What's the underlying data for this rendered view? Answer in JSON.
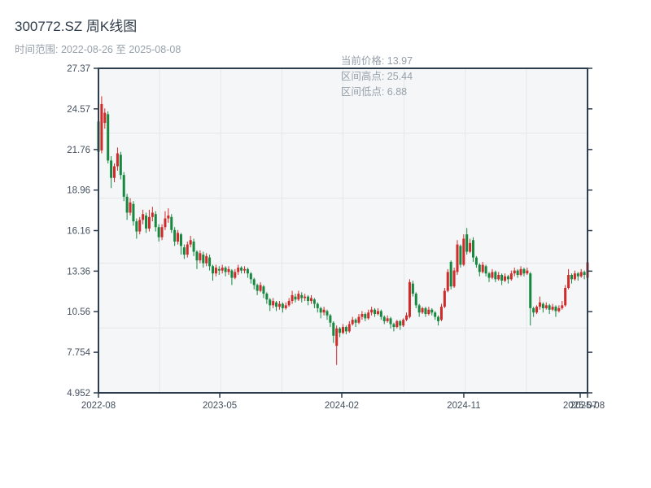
{
  "header": {
    "title": "300772.SZ 周K线图",
    "range_text": "时间范围: 2022-08-26 至 2025-08-08",
    "stats": {
      "current": "当前价格: 13.97",
      "range_high": "区间高点: 25.44",
      "range_low": "区间低点: 6.88"
    }
  },
  "chart_data": {
    "type": "candlestick",
    "title": "300772.SZ 周K线图",
    "interval": "weekly",
    "date_range": {
      "start": "2022-08-26",
      "end": "2025-08-08"
    },
    "current_price": 13.97,
    "range_high": 25.44,
    "range_low": 6.88,
    "ylim": [
      4.952,
      27.37
    ],
    "y_tick_labels": [
      "4.952",
      "7.754",
      "10.56",
      "13.36",
      "16.16",
      "18.96",
      "21.76",
      "24.57",
      "27.37"
    ],
    "y_ticks": [
      4.952,
      7.754,
      10.56,
      13.36,
      16.16,
      18.96,
      21.76,
      24.57,
      27.37
    ],
    "x_ticks": [
      {
        "label": "2022-08",
        "pos": 0.0
      },
      {
        "label": "2023-05",
        "pos": 0.248
      },
      {
        "label": "2024-02",
        "pos": 0.4975
      },
      {
        "label": "2024-11",
        "pos": 0.747
      },
      {
        "label": "2025-07",
        "pos": 0.985
      },
      {
        "label": "2025-08",
        "pos": 1.0
      }
    ],
    "grid": {
      "v_divisions": 8,
      "h_divisions": 5
    },
    "colors": {
      "up": "#d12a2a",
      "down": "#168840",
      "plot_bg": "#f4f6f7",
      "grid": "#e4e7ea",
      "axis": "#2e3d4e"
    },
    "candles": [
      [
        23.7,
        24.0,
        21.2,
        21.6
      ],
      [
        21.7,
        25.44,
        21.5,
        24.9
      ],
      [
        23.6,
        24.6,
        23.2,
        24.3
      ],
      [
        24.2,
        24.4,
        20.8,
        21.0
      ],
      [
        21.0,
        21.3,
        19.1,
        19.8
      ],
      [
        19.8,
        20.8,
        19.5,
        20.6
      ],
      [
        20.6,
        21.9,
        20.3,
        21.5
      ],
      [
        21.4,
        21.6,
        19.7,
        20.0
      ],
      [
        20.0,
        20.2,
        18.2,
        18.5
      ],
      [
        18.5,
        18.7,
        16.9,
        17.4
      ],
      [
        17.4,
        18.4,
        17.2,
        18.1
      ],
      [
        18.0,
        18.2,
        16.5,
        16.8
      ],
      [
        16.8,
        17.0,
        15.6,
        16.1
      ],
      [
        16.1,
        17.1,
        15.9,
        16.9
      ],
      [
        16.9,
        17.6,
        16.6,
        17.3
      ],
      [
        17.2,
        17.4,
        16.0,
        16.3
      ],
      [
        16.3,
        17.6,
        16.1,
        17.1
      ],
      [
        17.1,
        17.8,
        16.8,
        17.4
      ],
      [
        17.3,
        17.5,
        16.1,
        16.4
      ],
      [
        16.4,
        16.6,
        15.4,
        15.7
      ],
      [
        15.7,
        16.6,
        15.5,
        16.4
      ],
      [
        16.4,
        17.5,
        16.2,
        17.0
      ],
      [
        17.0,
        17.7,
        16.7,
        17.2
      ],
      [
        17.1,
        17.3,
        16.0,
        16.2
      ],
      [
        16.2,
        16.4,
        15.1,
        15.4
      ],
      [
        15.4,
        16.2,
        15.2,
        16.0
      ],
      [
        15.9,
        16.0,
        14.5,
        15.1
      ],
      [
        15.0,
        15.2,
        14.2,
        14.5
      ],
      [
        14.5,
        15.4,
        14.3,
        15.2
      ],
      [
        15.2,
        15.8,
        15.0,
        15.5
      ],
      [
        15.4,
        15.6,
        14.4,
        14.7
      ],
      [
        14.7,
        14.8,
        13.5,
        14.1
      ],
      [
        14.1,
        14.8,
        13.9,
        14.6
      ],
      [
        14.5,
        14.7,
        13.6,
        13.9
      ],
      [
        13.9,
        14.6,
        13.7,
        14.4
      ],
      [
        14.3,
        14.5,
        13.4,
        13.7
      ],
      [
        13.7,
        13.8,
        12.7,
        13.2
      ],
      [
        13.2,
        13.8,
        13.0,
        13.6
      ],
      [
        13.5,
        13.7,
        13.1,
        13.4
      ],
      [
        13.4,
        13.8,
        13.2,
        13.6
      ],
      [
        13.6,
        13.7,
        13.0,
        13.3
      ],
      [
        13.3,
        13.7,
        13.1,
        13.5
      ],
      [
        13.4,
        13.5,
        12.4,
        12.9
      ],
      [
        12.9,
        13.5,
        12.8,
        13.3
      ],
      [
        13.3,
        13.8,
        13.1,
        13.6
      ],
      [
        13.6,
        13.7,
        13.2,
        13.4
      ],
      [
        13.4,
        13.7,
        13.2,
        13.5
      ],
      [
        13.5,
        13.6,
        12.9,
        13.2
      ],
      [
        13.2,
        13.3,
        12.5,
        12.8
      ],
      [
        12.8,
        12.9,
        12.1,
        12.4
      ],
      [
        12.4,
        12.5,
        11.7,
        12.0
      ],
      [
        12.0,
        12.6,
        11.9,
        12.4
      ],
      [
        12.3,
        12.4,
        11.5,
        11.8
      ],
      [
        11.8,
        11.9,
        11.1,
        11.4
      ],
      [
        11.4,
        11.5,
        10.6,
        11.0
      ],
      [
        11.0,
        11.5,
        10.8,
        11.3
      ],
      [
        11.2,
        11.3,
        10.6,
        10.9
      ],
      [
        10.9,
        11.3,
        10.7,
        11.1
      ],
      [
        11.1,
        11.2,
        10.5,
        10.8
      ],
      [
        10.8,
        11.2,
        10.7,
        11.0
      ],
      [
        11.0,
        11.5,
        10.9,
        11.3
      ],
      [
        11.3,
        12.0,
        11.1,
        11.7
      ],
      [
        11.6,
        11.8,
        11.2,
        11.4
      ],
      [
        11.4,
        12.0,
        11.3,
        11.8
      ],
      [
        11.7,
        11.9,
        11.2,
        11.5
      ],
      [
        11.5,
        11.8,
        11.3,
        11.6
      ],
      [
        11.6,
        11.7,
        11.0,
        11.3
      ],
      [
        11.3,
        11.7,
        11.1,
        11.5
      ],
      [
        11.4,
        11.5,
        10.8,
        11.1
      ],
      [
        11.1,
        11.2,
        10.5,
        10.8
      ],
      [
        10.8,
        10.9,
        10.1,
        10.5
      ],
      [
        10.5,
        10.9,
        10.3,
        10.7
      ],
      [
        10.6,
        10.7,
        10.0,
        10.3
      ],
      [
        10.3,
        10.4,
        9.5,
        9.8
      ],
      [
        9.8,
        9.9,
        8.4,
        8.9
      ],
      [
        8.2,
        9.6,
        6.88,
        9.4
      ],
      [
        9.4,
        9.5,
        8.8,
        9.1
      ],
      [
        9.1,
        9.7,
        9.0,
        9.5
      ],
      [
        9.5,
        9.6,
        9.0,
        9.2
      ],
      [
        9.2,
        9.9,
        9.1,
        9.7
      ],
      [
        9.7,
        10.2,
        9.6,
        10.0
      ],
      [
        10.0,
        10.1,
        9.5,
        9.8
      ],
      [
        9.8,
        10.4,
        9.7,
        10.2
      ],
      [
        10.2,
        10.6,
        10.0,
        10.4
      ],
      [
        10.4,
        10.5,
        9.9,
        10.1
      ],
      [
        10.1,
        10.7,
        10.0,
        10.5
      ],
      [
        10.5,
        10.9,
        10.3,
        10.7
      ],
      [
        10.7,
        10.8,
        10.2,
        10.4
      ],
      [
        10.4,
        10.8,
        10.3,
        10.6
      ],
      [
        10.6,
        10.7,
        10.0,
        10.2
      ],
      [
        10.2,
        10.3,
        9.7,
        9.9
      ],
      [
        9.9,
        10.3,
        9.8,
        10.1
      ],
      [
        10.1,
        10.2,
        9.4,
        9.7
      ],
      [
        9.7,
        9.8,
        9.2,
        9.5
      ],
      [
        9.5,
        10.0,
        9.4,
        9.9
      ],
      [
        9.9,
        10.0,
        9.3,
        9.6
      ],
      [
        9.6,
        10.1,
        9.5,
        10.0
      ],
      [
        10.0,
        10.5,
        9.9,
        10.3
      ],
      [
        10.2,
        12.8,
        10.1,
        12.6
      ],
      [
        12.5,
        12.7,
        11.6,
        11.8
      ],
      [
        11.8,
        11.9,
        10.8,
        11.0
      ],
      [
        11.0,
        11.1,
        10.2,
        10.5
      ],
      [
        10.5,
        10.9,
        10.4,
        10.8
      ],
      [
        10.8,
        10.9,
        10.2,
        10.4
      ],
      [
        10.4,
        10.9,
        10.3,
        10.7
      ],
      [
        10.7,
        10.8,
        10.3,
        10.5
      ],
      [
        10.5,
        10.6,
        10.0,
        10.2
      ],
      [
        10.2,
        10.3,
        9.6,
        9.9
      ],
      [
        10.0,
        11.1,
        9.9,
        10.9
      ],
      [
        10.9,
        12.2,
        10.8,
        12.0
      ],
      [
        12.0,
        13.5,
        11.9,
        13.3
      ],
      [
        14.0,
        14.1,
        12.1,
        12.3
      ],
      [
        12.3,
        13.6,
        12.2,
        13.4
      ],
      [
        13.3,
        15.5,
        13.1,
        15.2
      ],
      [
        15.1,
        15.2,
        13.6,
        13.8
      ],
      [
        13.8,
        15.9,
        13.7,
        15.6
      ],
      [
        15.9,
        16.34,
        14.5,
        14.7
      ],
      [
        14.7,
        15.6,
        14.6,
        15.3
      ],
      [
        15.5,
        15.7,
        14.0,
        14.3
      ],
      [
        14.3,
        14.4,
        13.6,
        13.8
      ],
      [
        13.8,
        13.9,
        13.0,
        13.3
      ],
      [
        13.3,
        14.0,
        13.2,
        13.8
      ],
      [
        13.7,
        13.8,
        13.0,
        13.2
      ],
      [
        13.2,
        13.3,
        12.6,
        12.9
      ],
      [
        12.9,
        13.5,
        12.8,
        13.3
      ],
      [
        13.3,
        13.4,
        12.6,
        12.8
      ],
      [
        12.8,
        13.3,
        12.7,
        13.1
      ],
      [
        13.1,
        13.2,
        12.4,
        12.7
      ],
      [
        12.7,
        13.2,
        12.6,
        13.0
      ],
      [
        13.0,
        13.1,
        12.5,
        12.8
      ],
      [
        12.8,
        13.4,
        12.7,
        13.2
      ],
      [
        13.2,
        13.6,
        13.0,
        13.4
      ],
      [
        13.4,
        13.5,
        12.9,
        13.1
      ],
      [
        13.1,
        13.7,
        13.0,
        13.5
      ],
      [
        13.5,
        13.6,
        13.0,
        13.2
      ],
      [
        13.2,
        13.6,
        13.1,
        13.4
      ],
      [
        13.2,
        13.3,
        9.6,
        10.8
      ],
      [
        10.8,
        10.9,
        10.2,
        10.5
      ],
      [
        10.5,
        11.0,
        10.4,
        10.9
      ],
      [
        10.9,
        11.6,
        10.7,
        11.2
      ],
      [
        11.1,
        11.2,
        10.5,
        10.8
      ],
      [
        10.8,
        11.2,
        10.7,
        11.0
      ],
      [
        11.0,
        11.1,
        10.4,
        10.7
      ],
      [
        10.7,
        11.1,
        10.6,
        10.9
      ],
      [
        10.9,
        11.0,
        10.2,
        10.6
      ],
      [
        10.6,
        11.0,
        10.5,
        10.8
      ],
      [
        10.8,
        11.3,
        10.7,
        11.0
      ],
      [
        11.0,
        12.4,
        10.9,
        12.2
      ],
      [
        12.2,
        13.5,
        12.1,
        13.1
      ],
      [
        13.1,
        13.2,
        12.5,
        12.8
      ],
      [
        12.8,
        13.4,
        12.7,
        13.2
      ],
      [
        13.2,
        13.3,
        12.7,
        13.0
      ],
      [
        13.0,
        13.5,
        12.9,
        13.3
      ],
      [
        13.3,
        13.4,
        12.8,
        13.1
      ],
      [
        12.9,
        14.8,
        12.7,
        13.97
      ]
    ]
  }
}
